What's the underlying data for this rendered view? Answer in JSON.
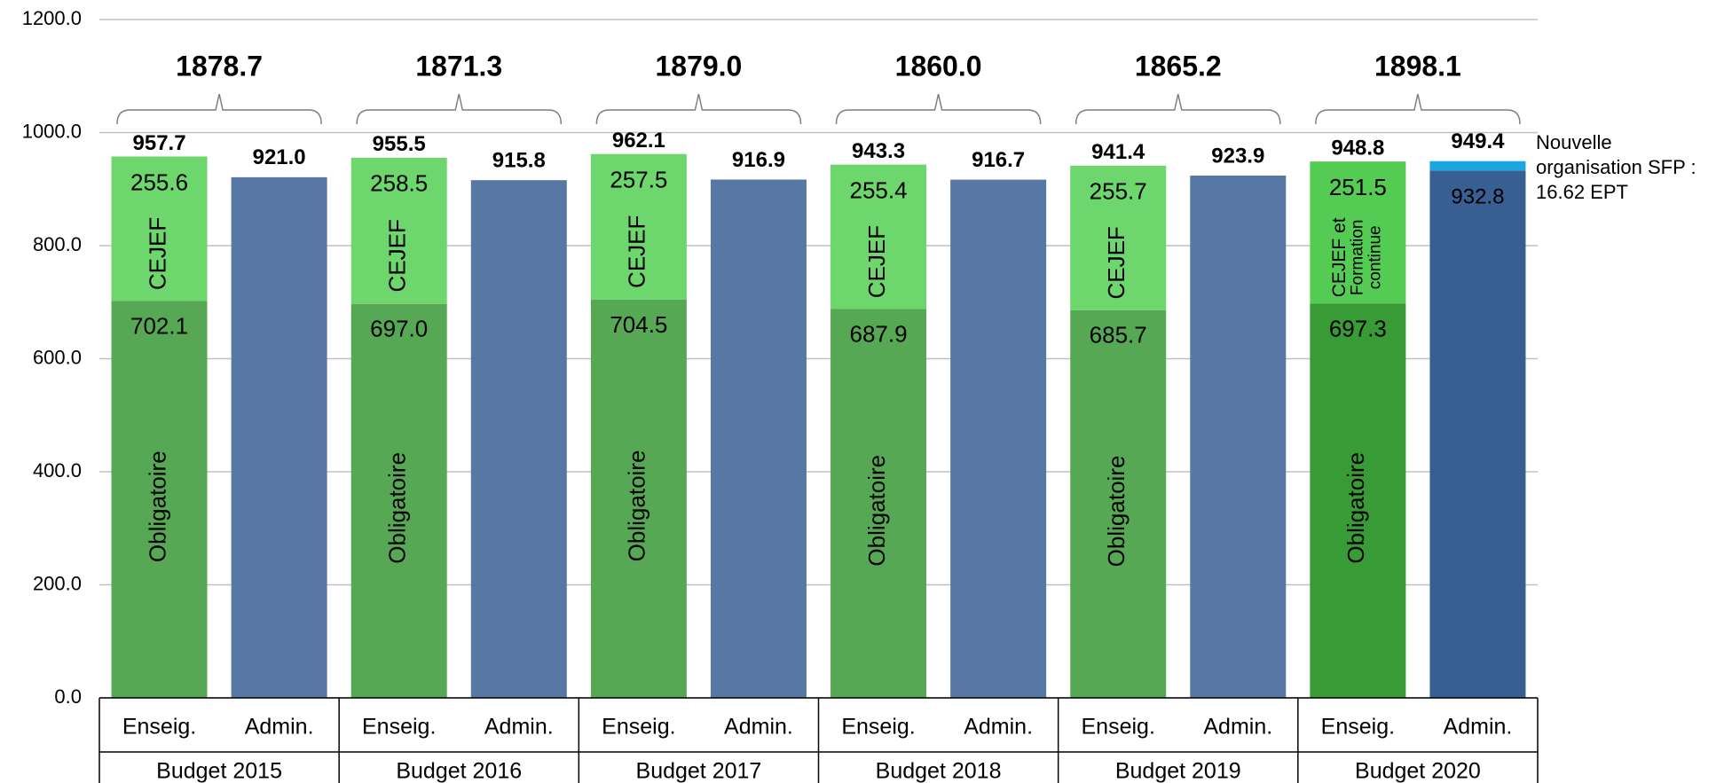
{
  "chart_data": {
    "type": "bar",
    "stacked": true,
    "ylim": [
      0,
      1200
    ],
    "y_ticks": [
      "0.0",
      "200.0",
      "400.0",
      "600.0",
      "800.0",
      "1000.0",
      "1200.0"
    ],
    "grid": true,
    "inner_categories": [
      "Enseig.",
      "Admin."
    ],
    "groups": [
      {
        "label": "Budget 2015",
        "total": "1878.7",
        "enseig": {
          "obligatoire": 702.1,
          "cejef": 255.6,
          "total": 957.7,
          "obligatoire_label": "702.1",
          "cejef_label": "255.6",
          "total_label": "957.7",
          "obligatoire_name": "Obligatoire",
          "cejef_name": "CEJEF"
        },
        "admin": {
          "value": 921.0,
          "total_label": "921.0"
        }
      },
      {
        "label": "Budget 2016",
        "total": "1871.3",
        "enseig": {
          "obligatoire": 697.0,
          "cejef": 258.5,
          "total": 955.5,
          "obligatoire_label": "697.0",
          "cejef_label": "258.5",
          "total_label": "955.5",
          "obligatoire_name": "Obligatoire",
          "cejef_name": "CEJEF"
        },
        "admin": {
          "value": 915.8,
          "total_label": "915.8"
        }
      },
      {
        "label": "Budget 2017",
        "total": "1879.0",
        "enseig": {
          "obligatoire": 704.5,
          "cejef": 257.5,
          "total": 962.1,
          "obligatoire_label": "704.5",
          "cejef_label": "257.5",
          "total_label": "962.1",
          "obligatoire_name": "Obligatoire",
          "cejef_name": "CEJEF"
        },
        "admin": {
          "value": 916.9,
          "total_label": "916.9"
        }
      },
      {
        "label": "Budget 2018",
        "total": "1860.0",
        "enseig": {
          "obligatoire": 687.9,
          "cejef": 255.4,
          "total": 943.3,
          "obligatoire_label": "687.9",
          "cejef_label": "255.4",
          "total_label": "943.3",
          "obligatoire_name": "Obligatoire",
          "cejef_name": "CEJEF"
        },
        "admin": {
          "value": 916.7,
          "total_label": "916.7"
        }
      },
      {
        "label": "Budget 2019",
        "total": "1865.2",
        "enseig": {
          "obligatoire": 685.7,
          "cejef": 255.7,
          "total": 941.4,
          "obligatoire_label": "685.7",
          "cejef_label": "255.7",
          "total_label": "941.4",
          "obligatoire_name": "Obligatoire",
          "cejef_name": "CEJEF"
        },
        "admin": {
          "value": 923.9,
          "total_label": "923.9"
        }
      },
      {
        "label": "Budget 2020",
        "total": "1898.1",
        "enseig": {
          "obligatoire": 697.3,
          "cejef": 251.5,
          "total": 948.8,
          "obligatoire_label": "697.3",
          "cejef_label": "251.5",
          "total_label": "948.8",
          "obligatoire_name": "Obligatoire",
          "cejef_name": [
            "CEJEF et",
            "Formation",
            "continue"
          ]
        },
        "admin": {
          "value": 932.8,
          "extra": 16.6,
          "value_label": "932.8",
          "total_label": "949.4"
        }
      }
    ],
    "annotation": [
      "Nouvelle",
      "organisation SFP :",
      "16.62 EPT"
    ]
  },
  "colors": {
    "obligatoire": "#56a854",
    "cejef": "#6dd66d",
    "admin": "#5778a4",
    "obligatoire_2020": "#389b35",
    "cejef_2020": "#54cc54",
    "admin_2020": "#375f92",
    "sfp": "#1aa6e0",
    "grid": "#c0c0c0",
    "axis": "#000000",
    "text": "#000000"
  }
}
